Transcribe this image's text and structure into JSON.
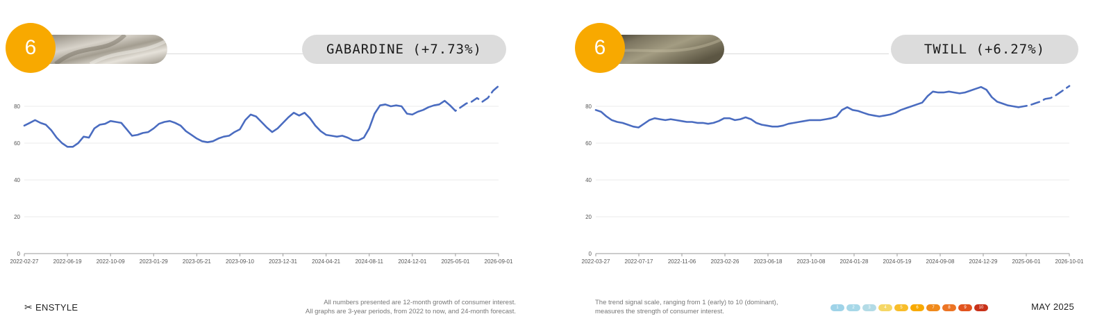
{
  "colors": {
    "accent": "#f8a900",
    "line": "#4a6cc0",
    "pill": "#dcdcdc",
    "grid": "#ebebeb"
  },
  "panels": [
    {
      "score": "6",
      "title": "GABARDINE (+7.73%)",
      "swatch": "gabardine-fabric-swatch",
      "swatch_colors": [
        "#b9b3a8",
        "#7a7468",
        "#e8e4dc"
      ]
    },
    {
      "score": "6",
      "title": "TWILL (+6.27%)",
      "swatch": "twill-fabric-swatch",
      "swatch_colors": [
        "#4a4332",
        "#8e876f",
        "#6e6850"
      ]
    }
  ],
  "footer": {
    "brand": "ENSTYLE",
    "brand_icon": "scissors-icon",
    "note_left_1": "All numbers presented are 12-month growth of consumer interest.",
    "note_left_2": "All graphs are 3-year periods, from 2022 to now, and 24-month forecast.",
    "note_right_1": "The trend signal scale, ranging from 1 (early) to 10 (dominant),",
    "note_right_2": "measures the strength of consumer interest.",
    "scale": [
      {
        "label": "1",
        "color": "#9fd3e8"
      },
      {
        "label": "2",
        "color": "#a7d8e8"
      },
      {
        "label": "3",
        "color": "#b3dbe6"
      },
      {
        "label": "4",
        "color": "#f5d766"
      },
      {
        "label": "5",
        "color": "#f8bd2a"
      },
      {
        "label": "6",
        "color": "#f8a900"
      },
      {
        "label": "7",
        "color": "#f08a1c"
      },
      {
        "label": "8",
        "color": "#ec7424"
      },
      {
        "label": "9",
        "color": "#e2541e"
      },
      {
        "label": "10",
        "color": "#c8321a"
      }
    ],
    "date": "MAY 2025"
  },
  "chart_data": [
    {
      "type": "line",
      "title": "GABARDINE (+7.73%)",
      "ylim": [
        0,
        100
      ],
      "yticks": [
        0,
        20,
        40,
        60,
        80
      ],
      "xticks": [
        "2022-02-27",
        "2022-06-19",
        "2022-10-09",
        "2023-01-29",
        "2023-05-21",
        "2023-09-10",
        "2023-12-31",
        "2024-04-21",
        "2024-08-11",
        "2024-12-01",
        "2025-05-01",
        "2026-09-01"
      ],
      "xlim_days": [
        0,
        1232
      ],
      "grid": true,
      "series": [
        {
          "style": "solid",
          "x": [
            0,
            14,
            28,
            42,
            56,
            70,
            84,
            98,
            112,
            126,
            140,
            154,
            168,
            182,
            196,
            210,
            224,
            238,
            252,
            266,
            280,
            294,
            308,
            322,
            336,
            350,
            364,
            378,
            392,
            406,
            420,
            434,
            448,
            462,
            476,
            490,
            504,
            518,
            532,
            546,
            560,
            574,
            588,
            602,
            616,
            630,
            644,
            658,
            672,
            686,
            700,
            714,
            728,
            742,
            756,
            770,
            784,
            798,
            812,
            826,
            840,
            854,
            868,
            882,
            896,
            910,
            924,
            938,
            952,
            966,
            980,
            994,
            1008,
            1022,
            1036,
            1050,
            1064,
            1078,
            1092,
            1106
          ],
          "values": [
            69.5,
            71,
            72.5,
            71,
            70,
            67,
            63,
            60,
            58,
            58,
            60,
            63.5,
            63,
            68,
            70,
            70.5,
            72,
            71.5,
            71,
            67.5,
            64,
            64.5,
            65.5,
            66,
            68,
            70.5,
            71.5,
            72,
            71,
            69.5,
            66.5,
            64.5,
            62.5,
            61,
            60.5,
            61,
            62.5,
            63.5,
            64,
            66,
            67.5,
            72.5,
            75.5,
            74.5,
            71.5,
            68.5,
            66,
            68,
            71,
            74,
            76.5,
            75,
            76.5,
            73.5,
            69.5,
            66.5,
            64.5,
            64,
            63.5,
            64,
            63,
            61.5,
            61.5,
            63,
            68,
            76,
            80.5,
            81,
            80,
            80.5,
            80,
            76,
            75.5,
            77,
            78,
            79.5,
            80.5,
            81,
            83,
            80.5
          ]
        },
        {
          "style": "dashed",
          "x": [
            1106,
            1120,
            1134,
            1148,
            1162,
            1176,
            1190,
            1204,
            1218,
            1232
          ],
          "values": [
            80.5,
            77.5,
            79.5,
            81.5,
            82.5,
            84.5,
            82.5,
            84.5,
            88.5,
            91
          ]
        }
      ]
    },
    {
      "type": "line",
      "title": "TWILL (+6.27%)",
      "ylim": [
        0,
        100
      ],
      "yticks": [
        0,
        20,
        40,
        60,
        80
      ],
      "xticks": [
        "2022-03-27",
        "2022-07-17",
        "2022-11-06",
        "2023-02-26",
        "2023-06-18",
        "2023-10-08",
        "2024-01-28",
        "2024-05-19",
        "2024-09-08",
        "2024-12-29",
        "2025-06-01",
        "2026-10-01"
      ],
      "xlim_days": [
        0,
        1239
      ],
      "grid": true,
      "series": [
        {
          "style": "solid",
          "x": [
            0,
            14,
            28,
            42,
            56,
            70,
            84,
            98,
            112,
            126,
            140,
            154,
            168,
            182,
            196,
            210,
            224,
            238,
            252,
            266,
            280,
            294,
            308,
            322,
            336,
            350,
            364,
            378,
            392,
            406,
            420,
            434,
            448,
            462,
            476,
            490,
            504,
            518,
            532,
            546,
            560,
            574,
            588,
            602,
            616,
            630,
            644,
            658,
            672,
            686,
            700,
            714,
            728,
            742,
            756,
            770,
            784,
            798,
            812,
            826,
            840,
            854,
            868,
            882,
            896,
            910,
            924,
            938,
            952,
            966,
            980,
            994,
            1008,
            1022,
            1036,
            1050,
            1064,
            1078,
            1092,
            1106
          ],
          "values": [
            78,
            77,
            74.5,
            72.5,
            71.5,
            71,
            70,
            69,
            68.5,
            70.5,
            72.5,
            73.5,
            73,
            72.5,
            73,
            72.5,
            72,
            71.5,
            71.5,
            71,
            71,
            70.5,
            71,
            72,
            73.5,
            73.5,
            72.5,
            73,
            74,
            73,
            71,
            70,
            69.5,
            69,
            69,
            69.5,
            70.5,
            71,
            71.5,
            72,
            72.5,
            72.5,
            72.5,
            73,
            73.5,
            74.5,
            78,
            79.5,
            78,
            77.5,
            76.5,
            75.5,
            75,
            74.5,
            75,
            75.5,
            76.5,
            78,
            79,
            80,
            81,
            82,
            85.5,
            88,
            87.5,
            87.5,
            88,
            87.5,
            87,
            87.5,
            88.5,
            89.5,
            90.5,
            89,
            85,
            82.5,
            81.5,
            80.5,
            80,
            79.5
          ]
        },
        {
          "style": "dashed",
          "x": [
            1106,
            1120,
            1134,
            1148,
            1162,
            1176,
            1190,
            1204,
            1218,
            1232,
            1239
          ],
          "values": [
            79.5,
            80,
            80.5,
            81.5,
            82.5,
            84,
            84.5,
            86,
            88,
            90,
            91
          ]
        }
      ]
    }
  ]
}
